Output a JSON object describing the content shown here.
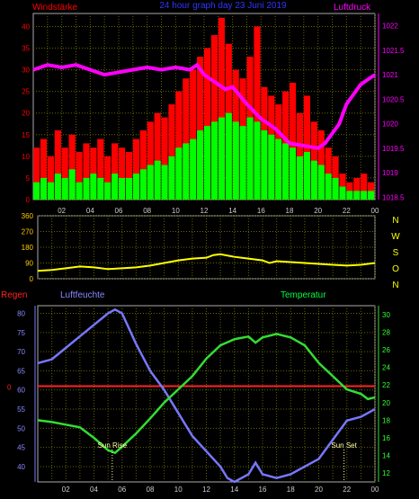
{
  "header": {
    "left": "Windstärke",
    "center": "24 hour graph day 23 Juni 2019",
    "right": "Luftdruck"
  },
  "colors": {
    "wind_axis": "#ff0000",
    "pressure_axis": "#ff00ff",
    "wind_gust": "#ff0000",
    "wind_avg": "#00ff00",
    "pressure_line": "#ff00ff",
    "direction_line": "#ffff00",
    "humidity_line": "#7777ff",
    "temperature_line": "#33dd33",
    "rain_line": "#ff2222",
    "grid": "#666600",
    "title": "#3333ff"
  },
  "direction_labels": [
    "N",
    "W",
    "S",
    "O",
    "N"
  ],
  "bottom_header": {
    "rain": "Regen",
    "humidity": "Luftfeuchte",
    "temperature": "Temperatur"
  },
  "annotations": {
    "sunrise": "Sun Rise",
    "sunset": "Sun Set"
  },
  "chart_data": [
    {
      "type": "bar",
      "name_ref": "wind",
      "x_ticks": [
        "02",
        "04",
        "06",
        "08",
        "10",
        "12",
        "14",
        "16",
        "18",
        "20",
        "22",
        "00"
      ],
      "xlim": [
        0,
        24
      ],
      "ylabel_left": "Windstärke",
      "ylabel_right": "Luftdruck",
      "left_ticks": [
        0,
        5,
        10,
        15,
        20,
        25,
        30,
        35,
        40
      ],
      "ylim_left": [
        0,
        43
      ],
      "right_ticks": [
        1018.5,
        1019,
        1019.5,
        1020,
        1020.5,
        1021,
        1021.5,
        1022
      ],
      "ylim_right": [
        1018.45,
        1022.25
      ],
      "wind_hours": [
        0,
        0.5,
        1,
        1.5,
        2,
        2.5,
        3,
        3.5,
        4,
        4.5,
        5,
        5.5,
        6,
        6.5,
        7,
        7.5,
        8,
        8.5,
        9,
        9.5,
        10,
        10.5,
        11,
        11.5,
        12,
        12.5,
        13,
        13.5,
        14,
        14.5,
        15,
        15.5,
        16,
        16.5,
        17,
        17.5,
        18,
        18.5,
        19,
        19.5,
        20,
        20.5,
        21,
        21.5,
        22,
        22.5,
        23,
        23.5
      ],
      "wind_avg": [
        4,
        5,
        4,
        6,
        5,
        7,
        4,
        5,
        6,
        5,
        4,
        6,
        5,
        5,
        6,
        7,
        8,
        9,
        8,
        10,
        12,
        13,
        14,
        16,
        17,
        18,
        19,
        20,
        18,
        17,
        19,
        18,
        16,
        15,
        14,
        13,
        12,
        10,
        11,
        9,
        8,
        6,
        5,
        3,
        2,
        2,
        2,
        2
      ],
      "wind_gust": [
        12,
        14,
        10,
        16,
        12,
        15,
        11,
        13,
        12,
        14,
        10,
        13,
        12,
        11,
        14,
        16,
        18,
        20,
        19,
        22,
        25,
        28,
        30,
        33,
        35,
        38,
        42,
        36,
        30,
        28,
        33,
        40,
        26,
        24,
        22,
        25,
        27,
        20,
        24,
        18,
        16,
        12,
        10,
        6,
        4,
        5,
        6,
        4
      ],
      "pressure_hours": [
        0,
        1,
        2,
        3,
        4,
        5,
        6,
        7,
        8,
        9,
        10,
        11,
        11.5,
        12,
        13,
        13.5,
        14,
        15,
        16,
        17,
        17.5,
        18,
        19,
        20,
        20.5,
        21,
        21.5,
        22,
        22.5,
        23,
        23.5,
        24
      ],
      "pressure_values": [
        1021.1,
        1021.2,
        1021.15,
        1021.2,
        1021.1,
        1021.0,
        1021.05,
        1021.1,
        1021.15,
        1021.1,
        1021.15,
        1021.1,
        1021.2,
        1021.0,
        1020.8,
        1020.7,
        1020.75,
        1020.4,
        1020.1,
        1019.9,
        1019.75,
        1019.6,
        1019.55,
        1019.5,
        1019.6,
        1019.8,
        1020.0,
        1020.4,
        1020.6,
        1020.8,
        1020.9,
        1021.0
      ]
    },
    {
      "type": "line",
      "name_ref": "direction",
      "x_ticks": [
        "02",
        "04",
        "06",
        "08",
        "10",
        "12",
        "14",
        "16",
        "18",
        "20",
        "22",
        "00"
      ],
      "xlim": [
        0,
        24
      ],
      "left_ticks": [
        0,
        90,
        180,
        270,
        360
      ],
      "ylim": [
        0,
        360
      ],
      "hours": [
        0,
        1,
        2,
        3,
        4,
        5,
        6,
        7,
        8,
        9,
        10,
        11,
        12,
        12.5,
        13,
        14,
        15,
        16,
        16.5,
        17,
        18,
        19,
        20,
        21,
        22,
        23,
        24
      ],
      "values": [
        45,
        50,
        60,
        70,
        65,
        55,
        60,
        65,
        75,
        90,
        105,
        115,
        120,
        135,
        140,
        125,
        115,
        105,
        90,
        100,
        95,
        90,
        85,
        80,
        75,
        80,
        90
      ]
    },
    {
      "type": "line",
      "name_ref": "humidity_temperature_rain",
      "x_ticks": [
        "02",
        "04",
        "06",
        "08",
        "10",
        "12",
        "14",
        "16",
        "18",
        "20",
        "22",
        "00"
      ],
      "xlim": [
        0,
        24
      ],
      "ylabel_left": "Luftfeuchte",
      "ylabel_right": "Temperatur",
      "rain_label": "Regen",
      "left_ticks": [
        40,
        45,
        50,
        55,
        60,
        65,
        70,
        75,
        80
      ],
      "ylim_left": [
        36,
        82
      ],
      "right_ticks": [
        12,
        14,
        16,
        18,
        20,
        22,
        24,
        26,
        28,
        30
      ],
      "ylim_right": [
        11,
        31
      ],
      "rain_tick": "0",
      "rain_value": 0,
      "rain_axis_position": 61,
      "humidity_hours": [
        0,
        1,
        2,
        3,
        4,
        5,
        5.5,
        6,
        7,
        8,
        9,
        10,
        11,
        12,
        13,
        13.5,
        14,
        15,
        15.5,
        16,
        17,
        18,
        19,
        20,
        21,
        22,
        23,
        24
      ],
      "humidity_values": [
        67,
        68,
        71,
        74,
        77,
        80,
        81,
        80,
        72,
        65,
        60,
        54,
        48,
        44,
        40,
        37,
        36,
        38,
        41,
        38,
        37,
        38,
        40,
        42,
        47,
        52,
        53,
        55
      ],
      "temperature_hours": [
        0,
        1,
        2,
        3,
        4,
        5,
        5.5,
        6,
        7,
        8,
        9,
        10,
        11,
        12,
        13,
        14,
        15,
        15.5,
        16,
        17,
        18,
        19,
        20,
        21,
        22,
        23,
        23.5,
        24
      ],
      "temperature_values": [
        18,
        17.8,
        17.5,
        17.2,
        16,
        14.6,
        14.3,
        15,
        16.5,
        18.2,
        20,
        21.5,
        23,
        25,
        26.5,
        27.2,
        27.5,
        26.8,
        27.4,
        27.8,
        27.4,
        26.5,
        24.5,
        23,
        21.5,
        21,
        20.4,
        20.6
      ],
      "sunrise_hour": 5.3,
      "sunset_hour": 21.8
    }
  ]
}
